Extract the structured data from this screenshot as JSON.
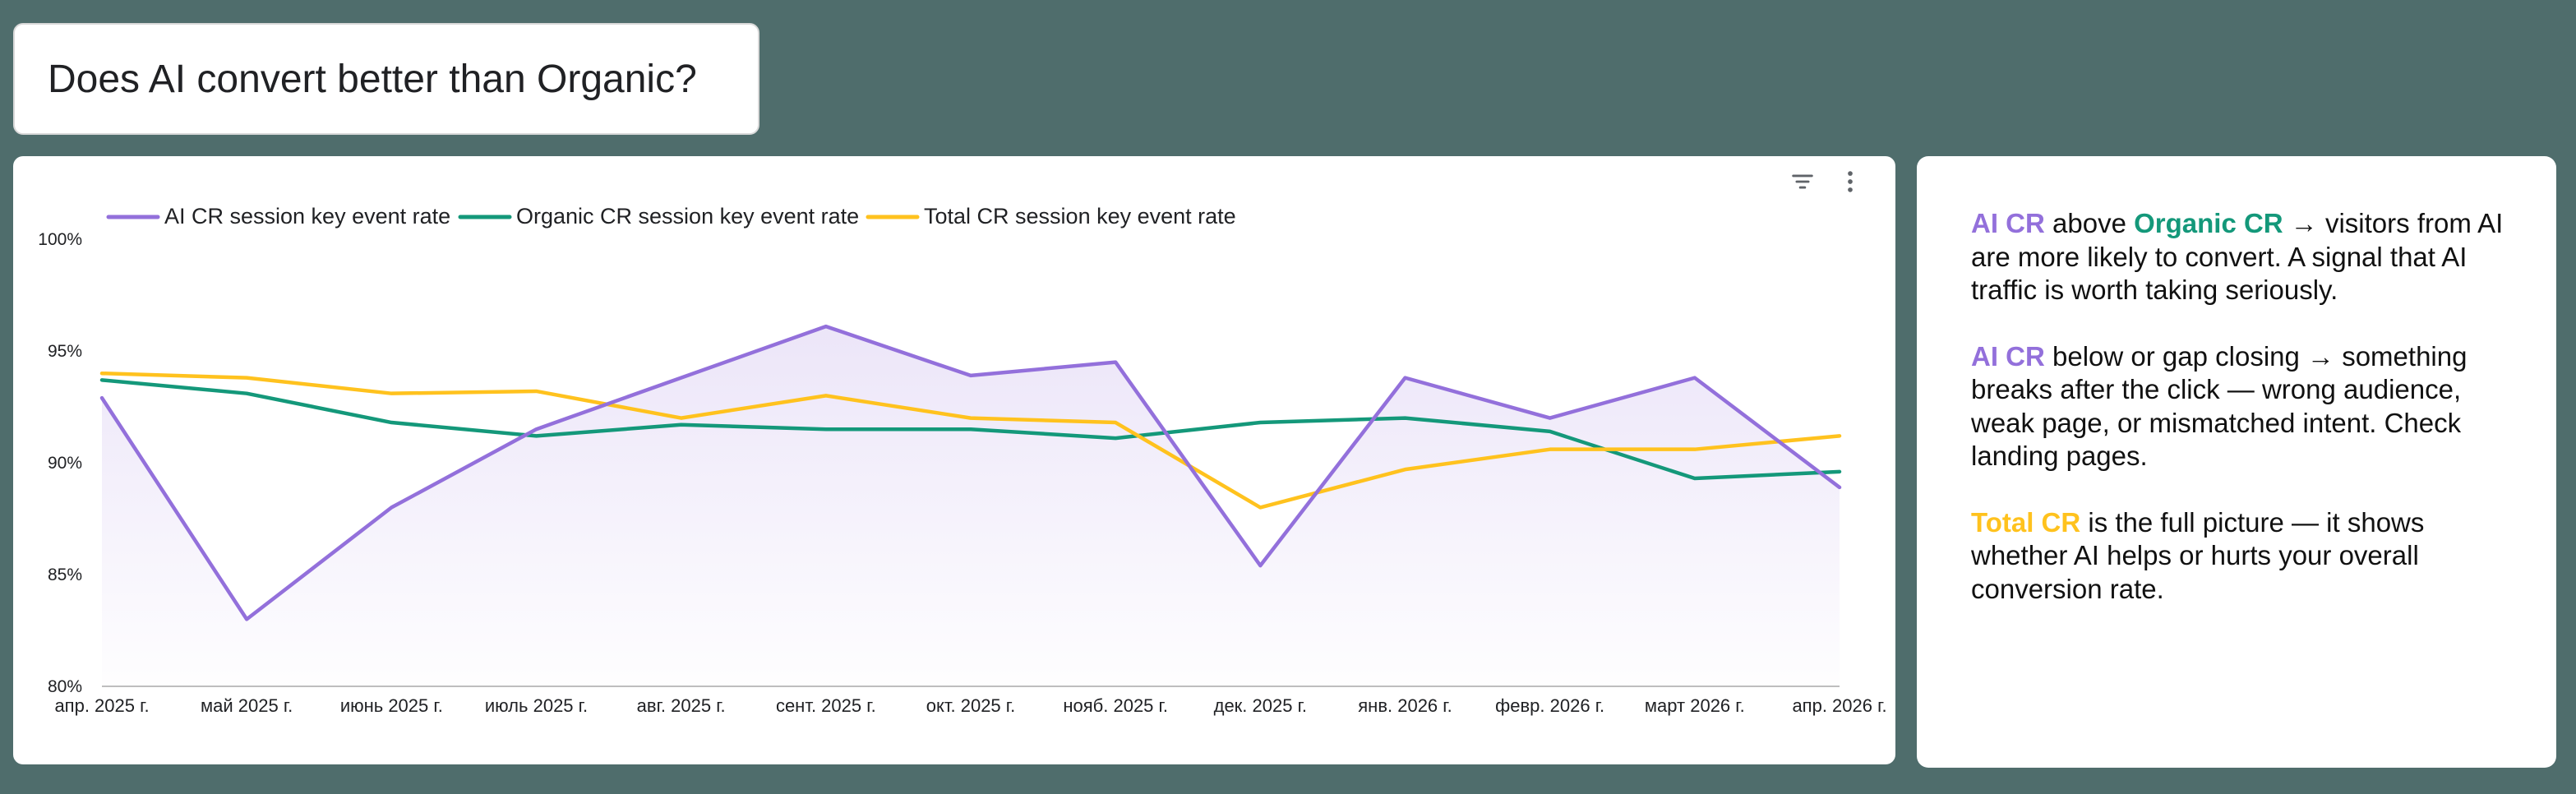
{
  "title": "Does AI convert better than Organic?",
  "colors": {
    "ai": "#9370db",
    "organic": "#14987a",
    "total": "#ffc21e",
    "area_fill": "#ebe4f8"
  },
  "toolbar": {
    "filter_icon": "filter-icon",
    "more_icon": "more-vert-icon"
  },
  "chart_data": {
    "type": "line",
    "categories": [
      "апр. 2025 г.",
      "май 2025 г.",
      "июнь 2025 г.",
      "июль 2025 г.",
      "авг. 2025 г.",
      "сент. 2025 г.",
      "окт. 2025 г.",
      "нояб. 2025 г.",
      "дек. 2025 г.",
      "янв. 2026 г.",
      "февр. 2026 г.",
      "март 2026 г.",
      "апр. 2026 г."
    ],
    "series": [
      {
        "name": "AI CR session key event rate",
        "color_key": "ai",
        "area": true,
        "values": [
          92.9,
          83.0,
          88.0,
          91.5,
          93.8,
          96.1,
          93.9,
          94.5,
          85.4,
          93.8,
          92.0,
          93.8,
          88.9
        ]
      },
      {
        "name": "Organic CR session key event rate",
        "color_key": "organic",
        "area": false,
        "values": [
          93.7,
          93.1,
          91.8,
          91.2,
          91.7,
          91.5,
          91.5,
          91.1,
          91.8,
          92.0,
          91.4,
          89.3,
          89.6
        ]
      },
      {
        "name": "Total CR session key event rate",
        "color_key": "total",
        "area": false,
        "values": [
          94.0,
          93.8,
          93.1,
          93.2,
          92.0,
          93.0,
          92.0,
          91.8,
          88.0,
          89.7,
          90.6,
          90.6,
          91.2
        ]
      }
    ],
    "ylim": [
      80,
      100
    ],
    "yticks": [
      80,
      85,
      90,
      95,
      100
    ],
    "ytick_labels": [
      "80%",
      "85%",
      "90%",
      "95%",
      "100%"
    ],
    "legend": "top-left",
    "xlabel": "",
    "ylabel": ""
  },
  "notes": [
    {
      "segments": [
        {
          "text": "AI CR",
          "color_key": "ai",
          "bold": true
        },
        {
          "text": " above ",
          "color_key": null,
          "bold": false
        },
        {
          "text": "Organic CR",
          "color_key": "organic",
          "bold": true
        },
        {
          "text": " → visitors from AI are more likely to convert. A signal that AI traffic is worth taking seriously.",
          "color_key": null,
          "bold": false
        }
      ]
    },
    {
      "segments": [
        {
          "text": "AI CR",
          "color_key": "ai",
          "bold": true
        },
        {
          "text": " below or gap closing → something breaks after the click — wrong audience, weak page, or mismatched intent. Check landing pages.",
          "color_key": null,
          "bold": false
        }
      ]
    },
    {
      "segments": [
        {
          "text": "Total CR",
          "color_key": "total",
          "bold": true
        },
        {
          "text": " is the full picture — it shows whether AI helps or hurts your overall conversion rate.",
          "color_key": null,
          "bold": false
        }
      ]
    }
  ]
}
